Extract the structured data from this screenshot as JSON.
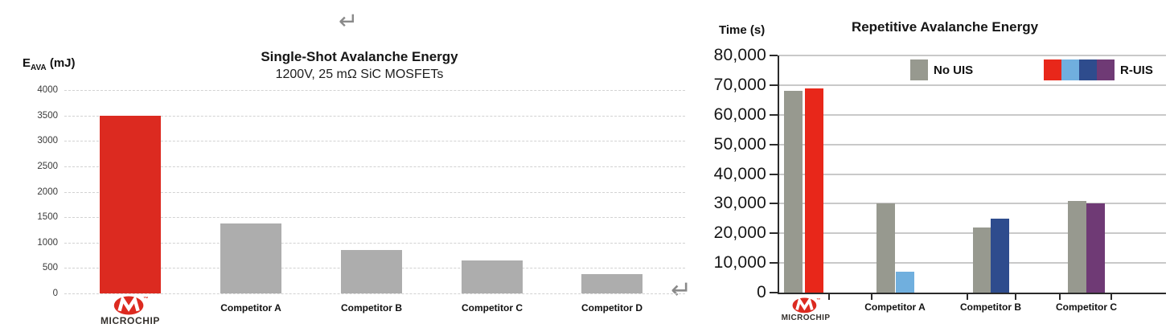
{
  "brand": {
    "wordmark": "MICROCHIP",
    "trademark": "™"
  },
  "decorations": {
    "return_symbol": "↵"
  },
  "left_chart": {
    "ylabel_e": "E",
    "ylabel_sub": "AVA",
    "ylabel_rest": " (mJ)",
    "title": "Single-Shot Avalanche Energy",
    "subtitle": "1200V, 25 mΩ SiC MOSFETs"
  },
  "right_chart": {
    "ylabel": "Time (s)",
    "title": "Repetitive Avalanche Energy",
    "legend": {
      "no_uis_label": "No UIS",
      "r_uis_label": "R-UIS"
    }
  },
  "chart_data": [
    {
      "type": "bar",
      "title": "Single-Shot Avalanche Energy",
      "subtitle": "1200V, 25 mΩ SiC MOSFETs",
      "ylabel": "E_AVA (mJ)",
      "categories": [
        "Microchip",
        "Competitor A",
        "Competitor B",
        "Competitor C",
        "Competitor D"
      ],
      "values": [
        3500,
        1380,
        860,
        650,
        375
      ],
      "bar_colors": [
        "#dc2a20",
        "#adadad",
        "#adadad",
        "#adadad",
        "#adadad"
      ],
      "ylim": [
        0,
        4000
      ],
      "ytick_step": 500,
      "grid": "horizontal-dashed",
      "legend_position": "none"
    },
    {
      "type": "bar",
      "title": "Repetitive Avalanche Energy",
      "ylabel": "Time (s)",
      "categories": [
        "Microchip",
        "Competitor A",
        "Competitor B",
        "Competitor C"
      ],
      "series": [
        {
          "name": "No UIS",
          "values": [
            68000,
            30000,
            22000,
            31000
          ],
          "colors": [
            "#97998f",
            "#97998f",
            "#97998f",
            "#97998f"
          ]
        },
        {
          "name": "R-UIS",
          "values": [
            69000,
            7000,
            25000,
            30000
          ],
          "colors": [
            "#e8271a",
            "#70afde",
            "#2e4c8d",
            "#6f3a75"
          ]
        }
      ],
      "ylim": [
        0,
        80000
      ],
      "ytick_step": 10000,
      "ytick_format": "thousands-comma",
      "grid": "horizontal-solid",
      "legend_position": "top-inside"
    }
  ]
}
